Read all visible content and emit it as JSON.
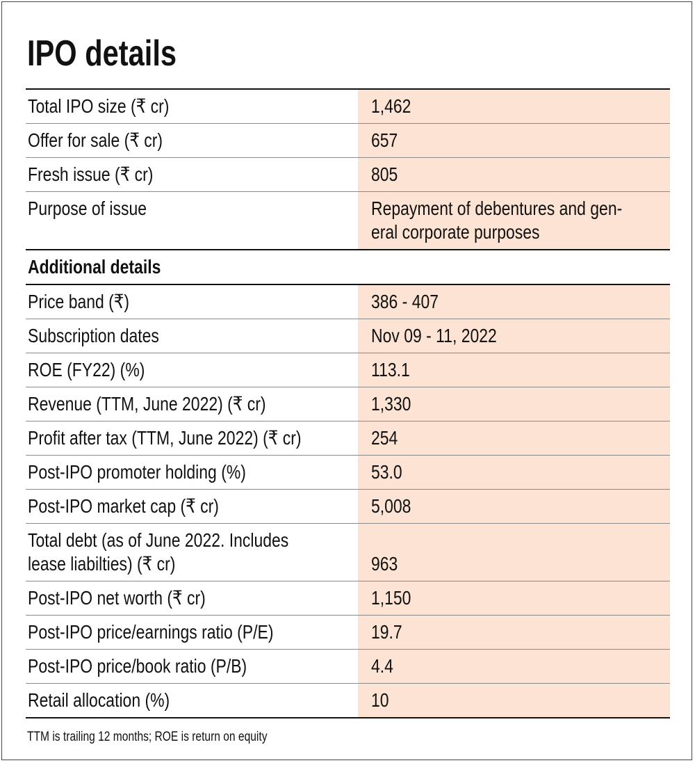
{
  "header": {
    "title": "IPO details"
  },
  "table": {
    "sections": [
      {
        "rows": [
          {
            "label": "Total IPO size (₹ cr)",
            "value": "1,462"
          },
          {
            "label": "Offer for sale (₹ cr)",
            "value": "657"
          },
          {
            "label": "Fresh issue (₹ cr)",
            "value": "805"
          },
          {
            "label": "Purpose of issue",
            "value": [
              "Repayment of debentures and gen-",
              "eral corporate purposes"
            ]
          }
        ]
      },
      {
        "heading": "Additional details",
        "rows": [
          {
            "label": "Price band (₹)",
            "value": "386 - 407"
          },
          {
            "label": "Subscription dates",
            "value": "Nov 09 - 11, 2022"
          },
          {
            "label": "ROE (FY22) (%)",
            "value": "113.1"
          },
          {
            "label": "Revenue (TTM, June 2022) (₹ cr)",
            "value": "1,330"
          },
          {
            "label": "Profit after tax (TTM, June 2022) (₹ cr)",
            "value": "254"
          },
          {
            "label": "Post-IPO promoter holding (%)",
            "value": "53.0"
          },
          {
            "label": "Post-IPO market cap (₹ cr)",
            "value": "5,008"
          },
          {
            "label": [
              "Total debt (as of June 2022. Includes",
              "lease liabilties) (₹ cr)"
            ],
            "value": "963"
          },
          {
            "label": "Post-IPO net worth (₹ cr)",
            "value": "1,150"
          },
          {
            "label": "Post-IPO price/earnings ratio (P/E)",
            "value": "19.7"
          },
          {
            "label": "Post-IPO price/book ratio (P/B)",
            "value": "4.4"
          },
          {
            "label": "Retail allocation (%)",
            "value": "10"
          }
        ]
      }
    ]
  },
  "footnote": "TTM is trailing 12 months; ROE is return on equity"
}
